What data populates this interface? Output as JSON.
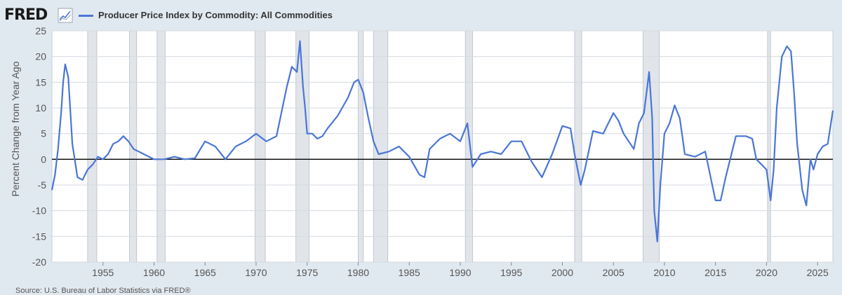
{
  "header": {
    "logo_text": "FRED",
    "legend_label": "Producer Price Index by Commodity: All Commodities"
  },
  "footer": {
    "source_text": "Source: U.S. Bureau of Labor Statistics via FRED®"
  },
  "colors": {
    "series": "#4a76d6",
    "recession": "#e1e5ea",
    "background": "#e1e9f0",
    "plot_bg": "#ffffff",
    "grid": "#d4dae0",
    "zero_line": "#000000",
    "logo": "#1a1a1a"
  },
  "chart_data": {
    "type": "line",
    "title": "",
    "xlabel": "",
    "ylabel": "Percent Change from Year Ago",
    "xlim": [
      1950.0,
      2026.5
    ],
    "ylim": [
      -20,
      25
    ],
    "yticks": [
      25,
      20,
      15,
      10,
      5,
      0,
      -5,
      -10,
      -15,
      -20
    ],
    "ytick_labels": [
      "25",
      "20",
      "15",
      "10",
      "5",
      "0",
      "-5",
      "-10",
      "-15",
      "-20"
    ],
    "xticks": [
      1955,
      1960,
      1965,
      1970,
      1975,
      1980,
      1985,
      1990,
      1995,
      2000,
      2005,
      2010,
      2015,
      2020,
      2025
    ],
    "xtick_labels": [
      "1955",
      "1960",
      "1965",
      "1970",
      "1975",
      "1980",
      "1985",
      "1990",
      "1995",
      "2000",
      "2005",
      "2010",
      "2015",
      "2020",
      "2025"
    ],
    "grid": true,
    "recessions": [
      [
        1953.5,
        1954.4
      ],
      [
        1957.6,
        1958.3
      ],
      [
        1960.3,
        1961.1
      ],
      [
        1969.9,
        1970.9
      ],
      [
        1973.9,
        1975.2
      ],
      [
        1980.0,
        1980.5
      ],
      [
        1981.5,
        1982.9
      ],
      [
        1990.5,
        1991.2
      ],
      [
        2001.2,
        2001.9
      ],
      [
        2007.9,
        2009.5
      ],
      [
        2020.1,
        2020.4
      ]
    ],
    "series": [
      {
        "name": "Producer Price Index by Commodity: All Commodities",
        "x": [
          1950.0,
          1950.3,
          1950.6,
          1950.9,
          1951.1,
          1951.3,
          1951.6,
          1952.0,
          1952.5,
          1953.0,
          1953.5,
          1954.0,
          1954.5,
          1955.0,
          1955.5,
          1956.0,
          1956.5,
          1957.0,
          1957.5,
          1958.0,
          1958.5,
          1959.0,
          1960.0,
          1961.0,
          1962.0,
          1963.0,
          1964.0,
          1965.0,
          1966.0,
          1967.0,
          1968.0,
          1969.0,
          1970.0,
          1971.0,
          1972.0,
          1973.0,
          1973.5,
          1974.0,
          1974.3,
          1974.6,
          1974.8,
          1975.0,
          1975.5,
          1976.0,
          1976.5,
          1977.0,
          1978.0,
          1979.0,
          1979.6,
          1980.0,
          1980.5,
          1981.0,
          1981.5,
          1982.0,
          1983.0,
          1984.0,
          1985.0,
          1986.0,
          1986.5,
          1987.0,
          1988.0,
          1989.0,
          1990.0,
          1990.7,
          1991.2,
          1992.0,
          1993.0,
          1994.0,
          1995.0,
          1996.0,
          1997.0,
          1998.0,
          1999.0,
          2000.0,
          2000.8,
          2001.2,
          2001.8,
          2002.2,
          2003.0,
          2004.0,
          2005.0,
          2005.5,
          2006.0,
          2007.0,
          2007.5,
          2008.0,
          2008.5,
          2008.8,
          2009.0,
          2009.3,
          2009.6,
          2010.0,
          2010.5,
          2011.0,
          2011.5,
          2012.0,
          2013.0,
          2014.0,
          2015.0,
          2015.5,
          2016.0,
          2017.0,
          2018.0,
          2018.6,
          2019.0,
          2019.5,
          2020.0,
          2020.4,
          2020.7,
          2021.0,
          2021.5,
          2022.0,
          2022.4,
          2022.7,
          2023.0,
          2023.5,
          2023.9,
          2024.3,
          2024.6,
          2025.0,
          2025.5,
          2026.0,
          2026.5
        ],
        "y": [
          -6,
          -3,
          2,
          9,
          15,
          18.5,
          16,
          3,
          -3.5,
          -4,
          -2,
          -1,
          0.5,
          0,
          1,
          3,
          3.5,
          4.5,
          3.5,
          2,
          1.5,
          1,
          0,
          0,
          0.5,
          0,
          0.2,
          3.5,
          2.5,
          0,
          2.5,
          3.5,
          5,
          3.5,
          4.5,
          14,
          18,
          17,
          23,
          14,
          10,
          5,
          5,
          4,
          4.5,
          6,
          8.5,
          12,
          15,
          15.5,
          13,
          8,
          3.5,
          1,
          1.5,
          2.5,
          0.5,
          -3,
          -3.5,
          2,
          4,
          5,
          3.5,
          7,
          -1.5,
          1,
          1.5,
          1,
          3.5,
          3.5,
          -0.5,
          -3.5,
          1,
          6.5,
          6,
          1,
          -5,
          -2,
          5.5,
          5,
          9,
          7.5,
          5,
          2,
          7,
          9,
          17,
          8,
          -10,
          -16,
          -5,
          5,
          7,
          10.5,
          8,
          1,
          0.5,
          1.5,
          -8,
          -8,
          -3.5,
          4.5,
          4.5,
          4,
          0,
          -1,
          -2,
          -8,
          -2,
          10,
          20,
          22,
          21,
          13,
          3,
          -6,
          -9,
          0,
          -2,
          1,
          2.5,
          3,
          9.5
        ]
      }
    ]
  }
}
